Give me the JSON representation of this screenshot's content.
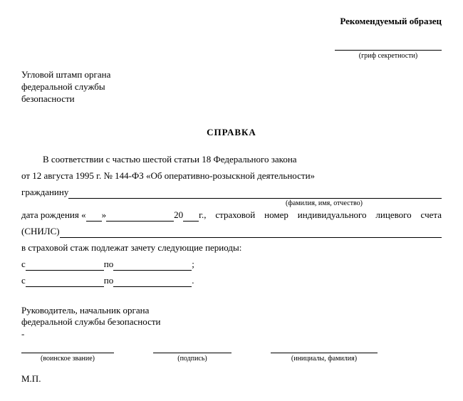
{
  "header": {
    "sample_label": "Рекомендуемый образец",
    "secrecy_caption": "(гриф секретности)",
    "stamp_line1": "Угловой штамп органа",
    "stamp_line2": "федеральной службы",
    "stamp_line3": "безопасности"
  },
  "title": "СПРАВКА",
  "body": {
    "para1": "В соответствии с частью шестой статьи 18 Федерального закона",
    "law_ref": "от  12 августа  1995 г.  № 144-ФЗ  «Об оперативно-розыскной  деятельности»",
    "citizen_prefix": "гражданину ",
    "fio_caption": "(фамилия, имя, отчество)",
    "dob_prefix": "дата рождения  «",
    "dob_mid1": "»",
    "dob_mid2": "20",
    "dob_after": " г.,  страховой  номер  индивидуального  лицевого  счета",
    "snils_prefix": "(СНИЛС) ",
    "stazh_line": "в страховой стаж подлежат зачету следующие периоды:",
    "period_from": "с ",
    "period_to": "   по   ",
    "period_end1": " ;",
    "period_end2": " .",
    "signer_line1": "Руководитель, начальник органа",
    "signer_line2": "федеральной службы безопасности",
    "dash": "-",
    "sig_cap_rank": "(воинское звание)",
    "sig_cap_sign": "(подпись)",
    "sig_cap_name": "(инициалы, фамилия)",
    "mp": "М.П."
  },
  "layout": {
    "uline_day_w": 22,
    "uline_month_w": 95,
    "uline_year_w": 22,
    "uline_period_w": 110,
    "sig_rank_w": 130,
    "sig_gap1_w": 55,
    "sig_sign_w": 110,
    "sig_gap2_w": 55,
    "sig_name_w": 150
  }
}
